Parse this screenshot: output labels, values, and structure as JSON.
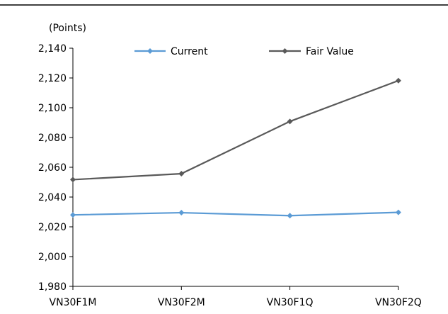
{
  "chart_data": {
    "type": "line",
    "unit_label": "(Points)",
    "categories": [
      "VN30F1M",
      "VN30F2M",
      "VN30F1Q",
      "VN30F2Q"
    ],
    "series": [
      {
        "name": "Current",
        "color": "#5B9BD5",
        "values": [
          2028,
          2029.5,
          2027.5,
          2029.7
        ]
      },
      {
        "name": "Fair Value",
        "color": "#595959",
        "values": [
          2051.7,
          2055.7,
          2090.8,
          2118.2
        ]
      }
    ],
    "ylim": [
      1980,
      2140
    ],
    "yticks": [
      1980,
      2000,
      2020,
      2040,
      2060,
      2080,
      2100,
      2120,
      2140
    ],
    "ytick_labels": [
      "1,980",
      "2,000",
      "2,020",
      "2,040",
      "2,060",
      "2,080",
      "2,100",
      "2,120",
      "2,140"
    ],
    "grid": false,
    "legend_position": "top"
  }
}
